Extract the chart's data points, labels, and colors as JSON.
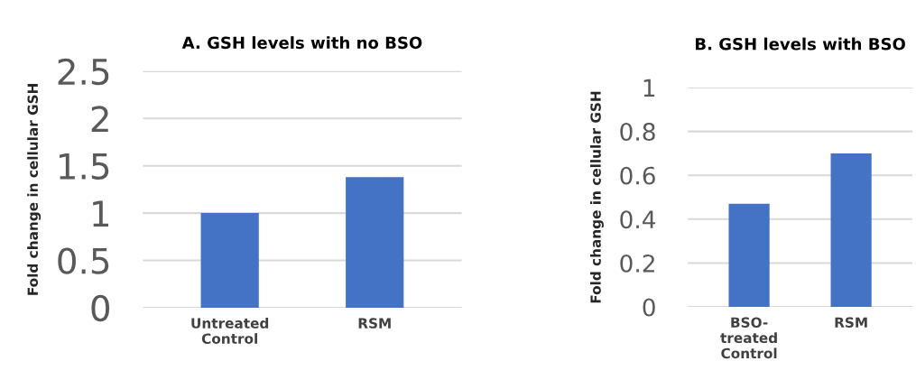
{
  "chart_data": [
    {
      "type": "bar",
      "title": "A. GSH levels with no BSO",
      "ylabel": "Fold change in cellular GSH",
      "categories": [
        "Untreated\nControl",
        "RSM"
      ],
      "values": [
        1,
        1.38
      ],
      "color": "#4472c4",
      "ylim": [
        0,
        2.5
      ],
      "yticks": [
        0,
        0.5,
        1,
        1.5,
        2,
        2.5
      ],
      "grid": "y"
    },
    {
      "type": "bar",
      "title": "B. GSH levels with BSO",
      "ylabel": "Fold change in cellular GSH",
      "categories": [
        "BSO-\ntreated\nControl",
        "RSM"
      ],
      "values": [
        0.47,
        0.7
      ],
      "color": "#4472c4",
      "ylim": [
        0,
        1
      ],
      "yticks": [
        0,
        0.2,
        0.4,
        0.6,
        0.8,
        1
      ],
      "grid": "y"
    }
  ]
}
